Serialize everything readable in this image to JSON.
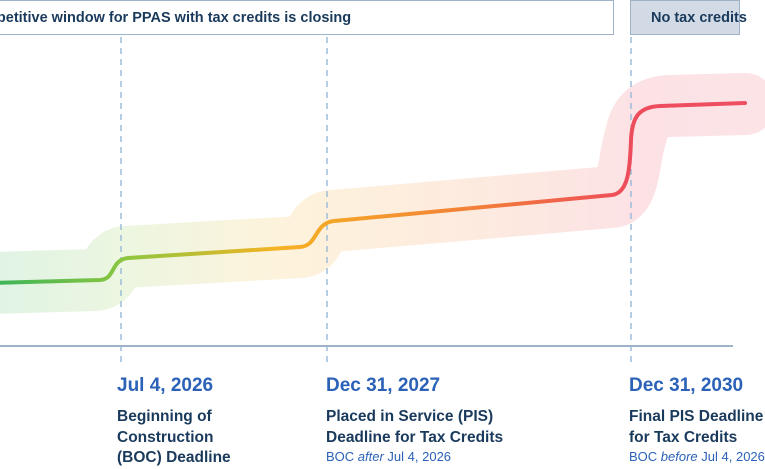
{
  "banner": {
    "left_text": "mpetitive window for PPAS with tax credits is closing",
    "right_text": "No tax credits"
  },
  "colors": {
    "gradient": [
      "#3fb557",
      "#8cc63f",
      "#f5b323",
      "#f27c39",
      "#ed4c5c"
    ],
    "divider": "#9fb3c8",
    "date_blue": "#2b62b8",
    "navy": "#1a3a5c",
    "no_credit_panel": "#d2dbe5"
  },
  "milestones": [
    {
      "date": "Jul 4, 2026",
      "lines": [
        "Beginning of",
        "Construction",
        "(BOC) Deadline"
      ],
      "note_pre": "",
      "note_em": "",
      "note_post": ""
    },
    {
      "date": "Dec 31, 2027",
      "lines": [
        "Placed in Service (PIS)",
        "Deadline for Tax Credits"
      ],
      "note_pre": "BOC ",
      "note_em": "after",
      "note_post": " Jul 4, 2026"
    },
    {
      "date": "Dec 31, 2030",
      "lines": [
        "Final PIS Deadline",
        "for Tax Credits"
      ],
      "note_pre": "BOC ",
      "note_em": "before",
      "note_post": " Jul 4, 2026"
    }
  ]
}
